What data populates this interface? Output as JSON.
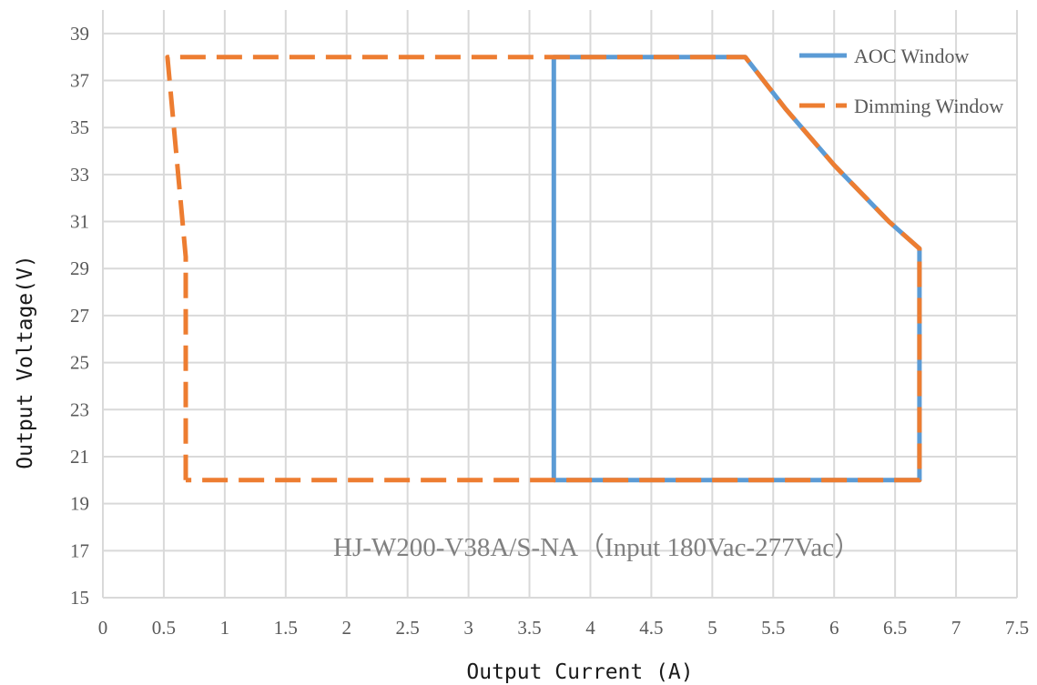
{
  "chart_data": {
    "type": "line",
    "xlabel": "Output Current (A)",
    "ylabel": "Output Voltage(V)",
    "xlim": [
      0,
      7.5
    ],
    "ylim": [
      15,
      40
    ],
    "x_ticks": [
      "0",
      "0.5",
      "1",
      "1.5",
      "2",
      "2.5",
      "3",
      "3.5",
      "4",
      "4.5",
      "5",
      "5.5",
      "6",
      "6.5",
      "7",
      "7.5"
    ],
    "y_ticks": [
      "15",
      "17",
      "19",
      "21",
      "23",
      "25",
      "27",
      "29",
      "31",
      "33",
      "35",
      "37",
      "39"
    ],
    "grid": true,
    "legend_position": "top-right",
    "annotation": "HJ-W200-V38A/S-NA（Input 180Vac-277Vac）",
    "series": [
      {
        "name": "AOC Window",
        "style": "solid",
        "color": "#5b9bd5",
        "points": [
          {
            "x": 3.7,
            "y": 20
          },
          {
            "x": 3.7,
            "y": 38
          },
          {
            "x": 5.27,
            "y": 38
          },
          {
            "x": 5.6,
            "y": 35.8
          },
          {
            "x": 6.0,
            "y": 33.4
          },
          {
            "x": 6.45,
            "y": 31.0
          },
          {
            "x": 6.7,
            "y": 29.85
          },
          {
            "x": 6.7,
            "y": 20
          },
          {
            "x": 3.7,
            "y": 20
          }
        ]
      },
      {
        "name": "Dimming Window",
        "style": "dashed",
        "color": "#ed7d31",
        "points": [
          {
            "x": 0.68,
            "y": 20
          },
          {
            "x": 0.68,
            "y": 29.5
          },
          {
            "x": 0.53,
            "y": 38
          },
          {
            "x": 5.27,
            "y": 38
          },
          {
            "x": 5.6,
            "y": 35.8
          },
          {
            "x": 6.0,
            "y": 33.4
          },
          {
            "x": 6.45,
            "y": 31.0
          },
          {
            "x": 6.7,
            "y": 29.85
          },
          {
            "x": 6.7,
            "y": 20
          },
          {
            "x": 0.68,
            "y": 20
          }
        ]
      }
    ]
  }
}
